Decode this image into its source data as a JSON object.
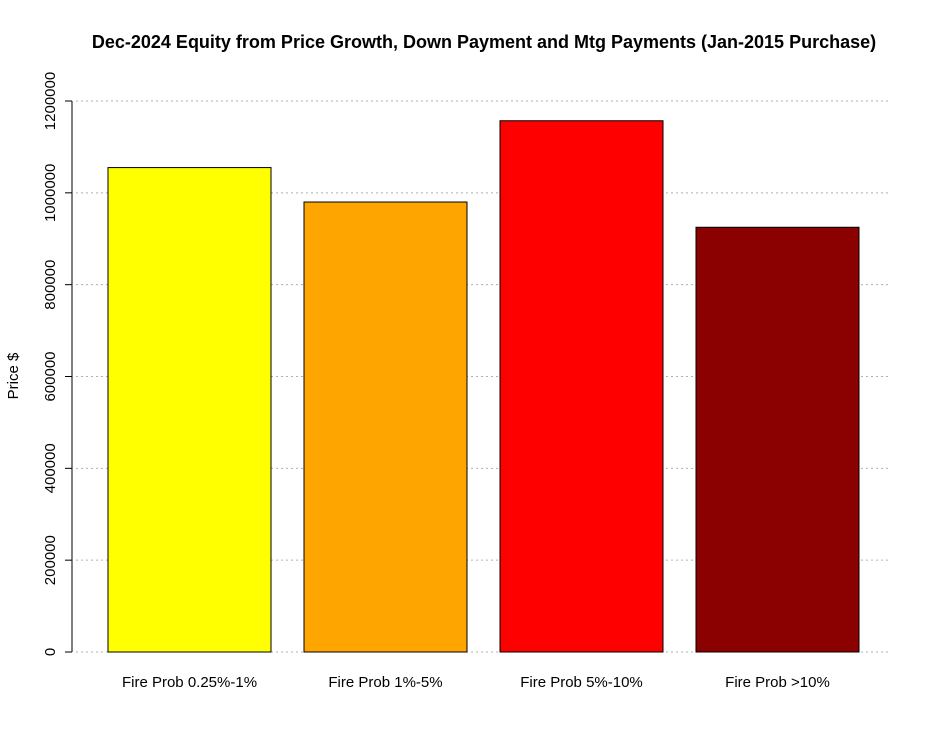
{
  "chart_data": {
    "type": "bar",
    "title": "Dec-2024 Equity from Price Growth, Down Payment and Mtg Payments (Jan-2015 Purchase)",
    "xlabel": "",
    "ylabel": "Price $",
    "categories": [
      "Fire Prob 0.25%-1%",
      "Fire Prob 1%-5%",
      "Fire Prob 5%-10%",
      "Fire Prob >10%"
    ],
    "values": [
      1055000,
      980000,
      1157000,
      925000
    ],
    "colors": [
      "#ffff00",
      "#ffa500",
      "#ff0000",
      "#8b0000"
    ],
    "ylim": [
      0,
      1200000
    ],
    "yticks": [
      0,
      200000,
      400000,
      600000,
      800000,
      1000000,
      1200000
    ],
    "ytick_labels": [
      "0",
      "200000",
      "400000",
      "600000",
      "800000",
      "1000000",
      "1200000"
    ],
    "grid": true,
    "grid_style": "horizontal dotted",
    "legend": "none"
  }
}
